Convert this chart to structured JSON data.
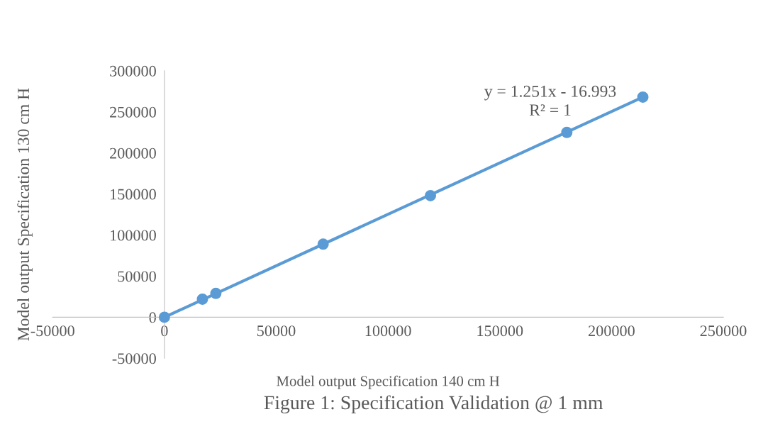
{
  "chart_data": {
    "type": "scatter",
    "title": "Figure 1: Specification Validation @ 1 mm",
    "xlabel": "Model output Specification 140 cm H",
    "ylabel": "Model output Specification 130 cm H",
    "annotations": [
      "y = 1.251x - 16.993\nR² = 1"
    ],
    "series": [
      {
        "color": "#5b9bd5",
        "marker": "circle",
        "x": [
          0,
          17000,
          23000,
          71000,
          119000,
          180000,
          214000
        ],
        "values": [
          0,
          22000,
          29000,
          89000,
          148000,
          225000,
          268000
        ]
      },
      {
        "type": "line",
        "marker": "none",
        "color": "#5b9bd5",
        "x": [
          0,
          214000
        ],
        "values": [
          0,
          268000
        ]
      }
    ],
    "line_style": "solid",
    "grid": false,
    "legend": false,
    "xlim": [
      -50000,
      250000
    ],
    "xticks": [
      -50000,
      0,
      50000,
      100000,
      150000,
      200000,
      250000
    ],
    "ylim": [
      -50000,
      300000
    ],
    "yticks": [
      -50000,
      0,
      50000,
      100000,
      150000,
      200000,
      250000,
      300000
    ]
  }
}
